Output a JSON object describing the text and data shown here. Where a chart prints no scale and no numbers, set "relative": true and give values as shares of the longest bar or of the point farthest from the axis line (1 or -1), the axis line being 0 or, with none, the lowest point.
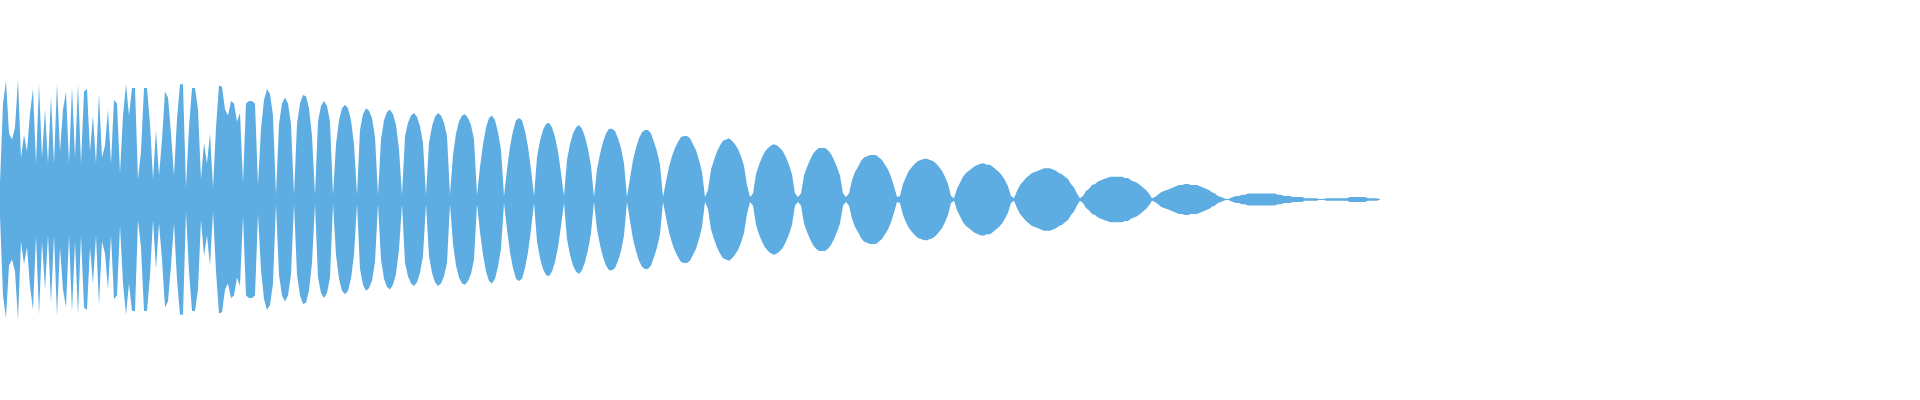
{
  "chart_data": {
    "type": "area",
    "relative": true,
    "ref_lines": [
      {
        "axis": "y",
        "value": 0,
        "color": "#5dade2"
      }
    ],
    "categories": [
      null,
      null,
      null,
      null,
      null,
      null,
      null,
      null,
      null,
      null,
      null,
      null,
      null,
      null,
      null,
      null,
      null,
      null,
      null,
      null,
      null,
      null,
      null,
      null,
      null,
      null,
      null,
      null,
      null,
      null,
      null,
      null,
      null,
      null,
      null,
      null,
      null,
      null,
      null,
      null,
      null,
      null,
      null,
      null,
      null,
      null,
      null,
      null,
      null,
      null,
      null,
      null,
      null,
      null,
      null,
      null,
      null,
      null,
      null,
      null,
      null,
      null,
      null,
      null,
      null,
      null,
      null,
      null,
      null,
      null,
      null,
      null,
      null,
      null,
      null,
      null,
      null,
      null,
      null,
      null,
      null,
      null,
      null,
      null,
      null,
      null,
      null,
      null,
      null,
      null,
      null,
      null,
      null,
      null,
      null,
      null,
      null,
      null,
      null,
      null,
      null,
      null,
      null,
      null,
      null,
      null,
      null,
      null,
      null,
      null,
      null,
      null,
      null,
      null,
      null,
      null,
      null,
      null,
      null,
      null,
      null,
      null,
      null,
      null,
      null,
      null,
      null,
      null,
      null,
      null,
      null,
      null,
      null,
      null,
      null,
      null,
      null,
      null,
      null,
      null,
      null,
      null,
      null,
      null,
      null,
      null,
      null,
      null,
      null,
      null,
      null,
      null,
      null,
      null,
      null,
      null,
      null,
      null,
      null,
      null,
      null,
      null,
      null,
      null,
      null,
      null,
      null,
      null,
      null,
      null,
      null,
      null,
      null,
      null,
      null,
      null,
      null,
      null,
      null,
      null,
      null,
      null,
      null,
      null,
      null,
      null,
      null,
      null,
      null,
      null,
      null,
      null,
      null,
      null,
      null,
      null,
      null,
      null,
      null,
      null,
      null,
      null,
      null,
      null,
      null,
      null,
      null,
      null,
      null,
      null,
      null,
      null,
      null,
      null,
      null,
      null,
      null,
      null,
      null,
      null,
      null,
      null,
      null,
      null,
      null,
      null,
      null,
      null,
      null,
      null,
      null,
      null,
      null,
      null,
      null,
      null,
      null,
      null,
      null,
      null,
      null,
      null,
      null,
      null,
      null,
      null,
      null,
      null,
      null,
      null,
      null,
      null,
      null,
      null,
      null,
      null,
      null,
      null,
      null,
      null,
      null,
      null,
      null,
      null,
      null,
      null,
      null,
      null,
      null,
      null,
      null,
      null,
      null,
      null,
      null,
      null,
      null,
      null,
      null,
      null,
      null,
      null,
      null,
      null,
      null,
      null,
      null,
      null,
      null,
      null,
      null,
      null,
      null,
      null,
      null,
      null,
      null,
      null,
      null,
      null,
      null,
      null,
      null,
      null,
      null,
      null,
      null,
      null,
      null,
      null,
      null,
      null,
      null,
      null,
      null,
      null,
      null,
      null,
      null,
      null,
      null,
      null,
      null,
      null,
      null,
      null,
      null,
      null,
      null,
      null,
      null,
      null,
      null,
      null,
      null,
      null,
      null,
      null,
      null,
      null,
      null,
      null,
      null,
      null,
      null,
      null,
      null,
      null,
      null,
      null,
      null,
      null,
      null,
      null,
      null,
      null,
      null,
      null,
      null,
      null,
      null,
      null,
      null,
      null,
      null,
      null,
      null,
      null,
      null,
      null,
      null,
      null,
      null,
      null,
      null,
      null,
      null,
      null,
      null,
      null,
      null,
      null,
      null,
      null,
      null,
      null,
      null,
      null,
      null,
      null,
      null,
      null,
      null,
      null,
      null,
      null,
      null,
      null,
      null,
      null,
      null,
      null,
      null,
      null,
      null,
      null,
      null,
      null,
      null,
      null,
      null,
      null,
      null,
      null,
      null,
      null,
      null,
      null,
      null,
      null,
      null,
      null,
      null,
      null,
      null,
      null,
      null,
      null,
      null,
      null,
      null,
      null,
      null,
      null,
      null,
      null,
      null,
      null,
      null,
      null,
      null,
      null,
      null,
      null,
      null,
      null,
      null,
      null,
      null,
      null,
      null,
      null,
      null,
      null,
      null,
      null,
      null,
      null,
      null,
      null,
      null
    ],
    "series": [
      {
        "color": "#5dade2",
        "values": [
          0.14,
          0.8,
          0.99,
          0.55,
          0.5,
          0.6,
          1.0,
          0.35,
          0.54,
          0.4,
          0.72,
          0.92,
          0.3,
          0.96,
          0.35,
          0.75,
          0.3,
          0.86,
          0.3,
          0.97,
          0.4,
          0.75,
          0.9,
          0.3,
          0.94,
          0.35,
          0.96,
          0.3,
          0.9,
          0.92,
          0.4,
          0.7,
          0.3,
          0.88,
          0.35,
          0.45,
          0.75,
          0.3,
          0.83,
          0.8,
          0.22,
          0.7,
          0.96,
          0.7,
          0.93,
          0.93,
          0.17,
          0.4,
          0.93,
          0.93,
          0.63,
          0.17,
          0.58,
          0.2,
          0.5,
          0.9,
          0.85,
          0.55,
          0.2,
          0.67,
          0.96,
          0.96,
          0.1,
          0.6,
          0.93,
          0.93,
          0.75,
          0.17,
          0.47,
          0.3,
          0.55,
          0.1,
          0.6,
          0.95,
          0.94,
          0.75,
          0.7,
          0.82,
          0.8,
          0.65,
          0.72,
          0.14,
          0.8,
          0.82,
          0.82,
          0.8,
          0.12,
          0.59,
          0.83,
          0.92,
          0.88,
          0.7,
          0.04,
          0.63,
          0.8,
          0.85,
          0.8,
          0.63,
          0.04,
          0.63,
          0.8,
          0.87,
          0.86,
          0.76,
          0.53,
          0.04,
          0.65,
          0.78,
          0.82,
          0.78,
          0.65,
          0.04,
          0.46,
          0.66,
          0.76,
          0.79,
          0.76,
          0.66,
          0.46,
          0.04,
          0.58,
          0.71,
          0.76,
          0.74,
          0.68,
          0.52,
          0.04,
          0.5,
          0.66,
          0.73,
          0.75,
          0.71,
          0.62,
          0.42,
          0.04,
          0.53,
          0.64,
          0.7,
          0.72,
          0.69,
          0.61,
          0.47,
          0.04,
          0.47,
          0.61,
          0.69,
          0.72,
          0.7,
          0.64,
          0.53,
          0.04,
          0.37,
          0.55,
          0.65,
          0.7,
          0.71,
          0.68,
          0.62,
          0.5,
          0.04,
          0.27,
          0.46,
          0.6,
          0.68,
          0.7,
          0.66,
          0.56,
          0.41,
          0.03,
          0.25,
          0.44,
          0.57,
          0.66,
          0.68,
          0.66,
          0.57,
          0.44,
          0.25,
          0.03,
          0.35,
          0.49,
          0.58,
          0.63,
          0.64,
          0.6,
          0.52,
          0.4,
          0.22,
          0.03,
          0.33,
          0.46,
          0.55,
          0.6,
          0.62,
          0.59,
          0.52,
          0.42,
          0.28,
          0.02,
          0.25,
          0.38,
          0.48,
          0.55,
          0.59,
          0.59,
          0.57,
          0.51,
          0.43,
          0.3,
          0.02,
          0.18,
          0.33,
          0.43,
          0.51,
          0.56,
          0.58,
          0.58,
          0.55,
          0.48,
          0.4,
          0.29,
          0.02,
          0.15,
          0.27,
          0.36,
          0.43,
          0.48,
          0.52,
          0.53,
          0.53,
          0.51,
          0.46,
          0.41,
          0.33,
          0.23,
          0.02,
          0.08,
          0.25,
          0.33,
          0.4,
          0.45,
          0.49,
          0.5,
          0.51,
          0.49,
          0.46,
          0.42,
          0.36,
          0.28,
          0.12,
          0.02,
          0.05,
          0.21,
          0.29,
          0.35,
          0.4,
          0.43,
          0.45,
          0.46,
          0.45,
          0.43,
          0.4,
          0.35,
          0.29,
          0.21,
          0.05,
          0.02,
          0.05,
          0.2,
          0.27,
          0.33,
          0.38,
          0.41,
          0.43,
          0.43,
          0.43,
          0.41,
          0.38,
          0.33,
          0.27,
          0.2,
          0.05,
          0.02,
          0.05,
          0.16,
          0.23,
          0.27,
          0.32,
          0.35,
          0.36,
          0.37,
          0.37,
          0.37,
          0.35,
          0.33,
          0.29,
          0.25,
          0.19,
          0.11,
          0.02,
          0.03,
          0.13,
          0.19,
          0.24,
          0.27,
          0.3,
          0.32,
          0.33,
          0.34,
          0.34,
          0.33,
          0.32,
          0.3,
          0.27,
          0.24,
          0.19,
          0.13,
          0.03,
          0.01,
          0.09,
          0.14,
          0.19,
          0.22,
          0.24,
          0.26,
          0.28,
          0.29,
          0.3,
          0.3,
          0.29,
          0.29,
          0.27,
          0.25,
          0.23,
          0.2,
          0.16,
          0.11,
          0.03,
          0.01,
          0.07,
          0.12,
          0.15,
          0.18,
          0.2,
          0.22,
          0.23,
          0.24,
          0.25,
          0.26,
          0.26,
          0.26,
          0.25,
          0.24,
          0.22,
          0.21,
          0.19,
          0.17,
          0.13,
          0.1,
          0.05,
          0.01,
          0.03,
          0.07,
          0.09,
          0.12,
          0.13,
          0.15,
          0.16,
          0.17,
          0.18,
          0.19,
          0.19,
          0.19,
          0.19,
          0.19,
          0.18,
          0.18,
          0.16,
          0.15,
          0.14,
          0.12,
          0.1,
          0.08,
          0.05,
          0.01,
          0.02,
          0.04,
          0.06,
          0.07,
          0.08,
          0.09,
          0.1,
          0.11,
          0.12,
          0.12,
          0.13,
          0.13,
          0.12,
          0.12,
          0.12,
          0.11,
          0.1,
          0.09,
          0.08,
          0.06,
          0.05,
          0.03,
          0.02,
          0.01,
          0,
          0.01,
          0.02,
          0.03,
          0.03,
          0.04,
          0.04,
          0.05,
          0.05,
          0.05,
          0.05,
          0.05,
          0.05,
          0.05,
          0.05,
          0.05,
          0.05,
          0.04,
          0.04,
          0.03,
          0.03,
          0.03,
          0.02,
          0.02,
          0.02,
          0.02,
          0.01,
          0.01,
          0.01,
          0.01,
          0.01,
          0,
          0,
          0.01,
          0.01,
          0.01,
          0.01,
          0.01,
          0.01,
          0.01,
          0.01,
          0.02,
          0.02,
          0.02,
          0.02,
          0.02,
          0.02,
          0.01,
          0.01,
          0.01,
          0.01,
          0
        ]
      },
      {
        "color": "#5eade2",
        "values": [
          -0.14,
          -0.8,
          -0.99,
          -0.55,
          -0.5,
          -0.6,
          -1.0,
          -0.35,
          -0.54,
          -0.4,
          -0.72,
          -0.92,
          -0.3,
          -0.96,
          -0.35,
          -0.75,
          -0.3,
          -0.86,
          -0.3,
          -0.97,
          -0.4,
          -0.75,
          -0.9,
          -0.3,
          -0.94,
          -0.35,
          -0.96,
          -0.3,
          -0.9,
          -0.92,
          -0.4,
          -0.7,
          -0.3,
          -0.88,
          -0.35,
          -0.45,
          -0.75,
          -0.3,
          -0.83,
          -0.8,
          -0.22,
          -0.7,
          -0.96,
          -0.7,
          -0.93,
          -0.93,
          -0.17,
          -0.4,
          -0.93,
          -0.93,
          -0.63,
          -0.17,
          -0.58,
          -0.2,
          -0.5,
          -0.9,
          -0.85,
          -0.55,
          -0.2,
          -0.67,
          -0.96,
          -0.96,
          -0.1,
          -0.6,
          -0.93,
          -0.93,
          -0.75,
          -0.17,
          -0.47,
          -0.3,
          -0.55,
          -0.1,
          -0.6,
          -0.95,
          -0.94,
          -0.75,
          -0.7,
          -0.82,
          -0.8,
          -0.65,
          -0.72,
          -0.14,
          -0.8,
          -0.82,
          -0.82,
          -0.8,
          -0.12,
          -0.59,
          -0.83,
          -0.92,
          -0.88,
          -0.7,
          -0.04,
          -0.63,
          -0.8,
          -0.85,
          -0.8,
          -0.63,
          -0.04,
          -0.63,
          -0.8,
          -0.87,
          -0.86,
          -0.76,
          -0.53,
          -0.04,
          -0.65,
          -0.78,
          -0.82,
          -0.78,
          -0.65,
          -0.04,
          -0.46,
          -0.66,
          -0.76,
          -0.79,
          -0.76,
          -0.66,
          -0.46,
          -0.04,
          -0.58,
          -0.71,
          -0.76,
          -0.74,
          -0.68,
          -0.52,
          -0.04,
          -0.5,
          -0.66,
          -0.73,
          -0.75,
          -0.71,
          -0.62,
          -0.42,
          -0.04,
          -0.53,
          -0.64,
          -0.7,
          -0.72,
          -0.69,
          -0.61,
          -0.47,
          -0.04,
          -0.47,
          -0.61,
          -0.69,
          -0.72,
          -0.7,
          -0.64,
          -0.53,
          -0.04,
          -0.37,
          -0.55,
          -0.65,
          -0.7,
          -0.71,
          -0.68,
          -0.62,
          -0.5,
          -0.04,
          -0.27,
          -0.46,
          -0.6,
          -0.68,
          -0.7,
          -0.66,
          -0.56,
          -0.41,
          -0.03,
          -0.25,
          -0.44,
          -0.57,
          -0.66,
          -0.68,
          -0.66,
          -0.57,
          -0.44,
          -0.25,
          -0.03,
          -0.35,
          -0.49,
          -0.58,
          -0.63,
          -0.64,
          -0.6,
          -0.52,
          -0.4,
          -0.22,
          -0.03,
          -0.33,
          -0.46,
          -0.55,
          -0.6,
          -0.62,
          -0.59,
          -0.52,
          -0.42,
          -0.28,
          -0.02,
          -0.25,
          -0.38,
          -0.48,
          -0.55,
          -0.59,
          -0.59,
          -0.57,
          -0.51,
          -0.43,
          -0.3,
          -0.02,
          -0.18,
          -0.33,
          -0.43,
          -0.51,
          -0.56,
          -0.58,
          -0.58,
          -0.55,
          -0.48,
          -0.4,
          -0.29,
          -0.02,
          -0.15,
          -0.27,
          -0.36,
          -0.43,
          -0.48,
          -0.52,
          -0.53,
          -0.53,
          -0.51,
          -0.46,
          -0.41,
          -0.33,
          -0.23,
          -0.02,
          -0.08,
          -0.25,
          -0.33,
          -0.4,
          -0.45,
          -0.49,
          -0.5,
          -0.51,
          -0.49,
          -0.46,
          -0.42,
          -0.36,
          -0.28,
          -0.12,
          -0.02,
          -0.05,
          -0.21,
          -0.29,
          -0.35,
          -0.4,
          -0.43,
          -0.45,
          -0.46,
          -0.45,
          -0.43,
          -0.4,
          -0.35,
          -0.29,
          -0.21,
          -0.05,
          -0.02,
          -0.05,
          -0.2,
          -0.27,
          -0.33,
          -0.38,
          -0.41,
          -0.43,
          -0.43,
          -0.43,
          -0.41,
          -0.38,
          -0.33,
          -0.27,
          -0.2,
          -0.05,
          -0.02,
          -0.05,
          -0.16,
          -0.23,
          -0.27,
          -0.32,
          -0.35,
          -0.36,
          -0.37,
          -0.37,
          -0.37,
          -0.35,
          -0.33,
          -0.29,
          -0.25,
          -0.19,
          -0.11,
          -0.02,
          -0.03,
          -0.13,
          -0.19,
          -0.24,
          -0.27,
          -0.3,
          -0.32,
          -0.33,
          -0.34,
          -0.34,
          -0.33,
          -0.32,
          -0.3,
          -0.27,
          -0.24,
          -0.19,
          -0.13,
          -0.03,
          -0.01,
          -0.09,
          -0.14,
          -0.19,
          -0.22,
          -0.24,
          -0.26,
          -0.28,
          -0.29,
          -0.3,
          -0.3,
          -0.29,
          -0.29,
          -0.27,
          -0.25,
          -0.23,
          -0.2,
          -0.16,
          -0.11,
          -0.03,
          -0.01,
          -0.07,
          -0.12,
          -0.15,
          -0.18,
          -0.2,
          -0.22,
          -0.23,
          -0.24,
          -0.25,
          -0.26,
          -0.26,
          -0.26,
          -0.25,
          -0.24,
          -0.22,
          -0.21,
          -0.19,
          -0.17,
          -0.13,
          -0.1,
          -0.05,
          -0.01,
          -0.03,
          -0.07,
          -0.09,
          -0.12,
          -0.13,
          -0.15,
          -0.16,
          -0.17,
          -0.18,
          -0.19,
          -0.19,
          -0.19,
          -0.19,
          -0.19,
          -0.18,
          -0.18,
          -0.16,
          -0.15,
          -0.14,
          -0.12,
          -0.1,
          -0.08,
          -0.05,
          -0.01,
          -0.02,
          -0.04,
          -0.06,
          -0.07,
          -0.08,
          -0.09,
          -0.1,
          -0.11,
          -0.12,
          -0.12,
          -0.13,
          -0.13,
          -0.12,
          -0.12,
          -0.12,
          -0.11,
          -0.1,
          -0.09,
          -0.08,
          -0.06,
          -0.05,
          -0.03,
          -0.02,
          -0.01,
          0,
          -0.01,
          -0.02,
          -0.03,
          -0.03,
          -0.04,
          -0.04,
          -0.05,
          -0.05,
          -0.05,
          -0.05,
          -0.05,
          -0.05,
          -0.05,
          -0.05,
          -0.05,
          -0.05,
          -0.04,
          -0.04,
          -0.03,
          -0.03,
          -0.03,
          -0.02,
          -0.02,
          -0.02,
          -0.02,
          -0.01,
          -0.01,
          -0.01,
          -0.01,
          -0.01,
          0,
          0,
          -0.01,
          -0.01,
          -0.01,
          -0.01,
          -0.01,
          -0.01,
          -0.01,
          -0.01,
          -0.02,
          -0.02,
          -0.02,
          -0.02,
          -0.02,
          -0.02,
          -0.01,
          -0.01,
          -0.01,
          -0.01,
          0
        ]
      }
    ]
  }
}
